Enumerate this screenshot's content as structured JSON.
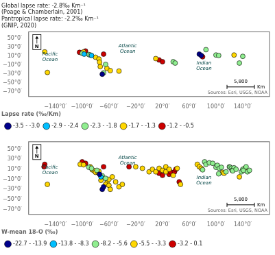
{
  "chart_data": [
    {
      "type": "scatter",
      "xlim": [
        -180,
        180
      ],
      "ylim": [
        -80,
        65
      ],
      "xticks": [
        {
          "value": -140,
          "label": "−140°0′"
        },
        {
          "value": -100,
          "label": "−100°0′"
        },
        {
          "value": -60,
          "label": "−60°0′"
        },
        {
          "value": -20,
          "label": "−20°0′"
        },
        {
          "value": 20,
          "label": "20°0′"
        },
        {
          "value": 60,
          "label": "60°0′"
        },
        {
          "value": 100,
          "label": "100°0′"
        },
        {
          "value": 140,
          "label": "140°0′"
        }
      ],
      "yticks": [
        {
          "value": -70,
          "label": "−70°0′"
        },
        {
          "value": -50,
          "label": "−50°0′"
        },
        {
          "value": -30,
          "label": "−30°0′"
        },
        {
          "value": -10,
          "label": "−10°0′"
        },
        {
          "value": 10,
          "label": "10°0′"
        },
        {
          "value": 30,
          "label": "30°0′"
        },
        {
          "value": 50,
          "label": "50°0′"
        }
      ],
      "grid": false,
      "legend": "lower left",
      "legend_title": "Lapse rate (‰/Km)",
      "series": [
        {
          "name": "-3.5 - -3.0",
          "color": "#00008B",
          "x": [
            -70,
            75,
            78
          ],
          "values": [
            -30,
            15,
            12
          ]
        },
        {
          "name": "-2.9 - -2.4",
          "color": "#00BFFF",
          "x": [
            -97,
            -86
          ],
          "values": [
            15,
            12
          ]
        },
        {
          "name": "-2.3 - -1.8",
          "color": "#90EE90",
          "x": [
            -100,
            -90,
            -88,
            -68,
            -65,
            36,
            39,
            85,
            100,
            104,
            135,
            140
          ],
          "values": [
            17,
            14,
            13,
            -27,
            -8,
            -2,
            -5,
            25,
            13,
            12,
            -5,
            10
          ]
        },
        {
          "name": "-1.7 - -1.3",
          "color": "#FFD700",
          "x": [
            -156,
            -152,
            -98,
            -80,
            -75,
            -74,
            -73,
            -63,
            -58,
            -45,
            10,
            127
          ],
          "values": [
            20,
            -26,
            20,
            8,
            4,
            -3,
            -13,
            -17,
            -22,
            -23,
            5,
            13
          ]
        },
        {
          "name": "-1.2 - -0.5",
          "color": "#CC0000",
          "x": [
            -104,
            -95,
            -68,
            15,
            20,
            80
          ],
          "values": [
            19,
            22,
            15,
            2,
            -2,
            9
          ]
        }
      ],
      "ocean_labels": [
        {
          "text": "Atlantic\nOcean",
          "x": -32,
          "y": 27
        },
        {
          "text": "Pacific\nOcean",
          "x": -148,
          "y": 8
        },
        {
          "text": "Indian\nOcean",
          "x": 82,
          "y": -12
        }
      ],
      "annotation": "Global lapse rate: -2.8‰ Km⁻¹\n(Poage & Chamberlain, 2001)\nPantropical lapse rate: -2.2‰ Km⁻¹\n(GNIP, 2020)",
      "scale_label": "5,800",
      "scale_unit": "Km",
      "source": "Sources: Esri, USGS, NOAA",
      "north": "N"
    },
    {
      "type": "scatter",
      "xlim": [
        -180,
        180
      ],
      "ylim": [
        -80,
        65
      ],
      "xticks": [
        {
          "value": -140,
          "label": "−140°0′"
        },
        {
          "value": -100,
          "label": "−100°0′"
        },
        {
          "value": -60,
          "label": "−60°0′"
        },
        {
          "value": -20,
          "label": "−20°0′"
        },
        {
          "value": 20,
          "label": "20°0′"
        },
        {
          "value": 60,
          "label": "60°0′"
        },
        {
          "value": 100,
          "label": "100°0′"
        },
        {
          "value": 140,
          "label": "140°0′"
        }
      ],
      "yticks": [
        {
          "value": -70,
          "label": "−70°0′"
        },
        {
          "value": -50,
          "label": "−50°0′"
        },
        {
          "value": -30,
          "label": "−30°0′"
        },
        {
          "value": -10,
          "label": "−10°0′"
        },
        {
          "value": 10,
          "label": "10°0′"
        },
        {
          "value": 30,
          "label": "30°0′"
        },
        {
          "value": 50,
          "label": "50°0′"
        }
      ],
      "grid": false,
      "legend": "lower left",
      "legend_title": "W-mean 18-O (‰)",
      "series": [
        {
          "name": "-22.7 - -13.9",
          "color": "#00008B",
          "x": [
            -74,
            -70,
            -68
          ],
          "values": [
            0,
            -30,
            -25
          ]
        },
        {
          "name": "-13.8 - -8.3",
          "color": "#00BFFF",
          "x": [
            -72
          ],
          "values": [
            -5
          ]
        },
        {
          "name": "-8.2 - -5.6",
          "color": "#90EE90",
          "x": [
            -90,
            -86,
            -78,
            -70,
            -65,
            80,
            83,
            85,
            90,
            95,
            100,
            102,
            104,
            105,
            108,
            115,
            120,
            121,
            123,
            124,
            127,
            125,
            130,
            138,
            140,
            141,
            145,
            147,
            150
          ],
          "values": [
            14,
            12,
            8,
            -3,
            -8,
            9,
            25,
            20,
            23,
            22,
            14,
            18,
            1,
            12,
            14,
            5,
            15,
            14,
            12,
            8,
            13,
            7,
            10,
            5,
            10,
            8,
            15,
            5,
            8
          ]
        },
        {
          "name": "-5.5 - -3.3",
          "color": "#FFD700",
          "x": [
            -152,
            -103,
            -98,
            -88,
            -85,
            -82,
            -80,
            -76,
            -75,
            -72,
            -63,
            -65,
            -60,
            -58,
            -60,
            -55,
            -45,
            -50,
            -40,
            -20,
            -10,
            0,
            5,
            10,
            15,
            20,
            25,
            25,
            30,
            36,
            42,
            47,
            72,
            75,
            78,
            110,
            112,
            135,
            143
          ],
          "values": [
            -20,
            20,
            19,
            15,
            9,
            7,
            4,
            3,
            6,
            -12,
            -17,
            -20,
            -22,
            -30,
            -10,
            -5,
            -25,
            -15,
            -20,
            15,
            12,
            5,
            10,
            5,
            12,
            8,
            15,
            5,
            10,
            -2,
            12,
            -20,
            20,
            15,
            12,
            4,
            2,
            -5,
            12
          ]
        },
        {
          "name": "-3.2 - 0.1",
          "color": "#CC0000",
          "x": [
            -156,
            -157,
            -100,
            -95,
            -68,
            -30,
            15,
            20,
            30,
            32,
            38,
            40,
            45
          ],
          "values": [
            20,
            15,
            25,
            22,
            15,
            15,
            2,
            -2,
            0,
            5,
            5,
            10,
            -15
          ]
        }
      ],
      "ocean_labels": [
        {
          "text": "Atlantic\nOcean",
          "x": -32,
          "y": 27
        },
        {
          "text": "Pacific\nOcean",
          "x": -148,
          "y": 8
        },
        {
          "text": "Indian\nOcean",
          "x": 82,
          "y": -12
        }
      ],
      "scale_label": "5,800",
      "scale_unit": "Km",
      "source": "Sources: Esri, USGS, NOAA",
      "north": "N"
    }
  ]
}
